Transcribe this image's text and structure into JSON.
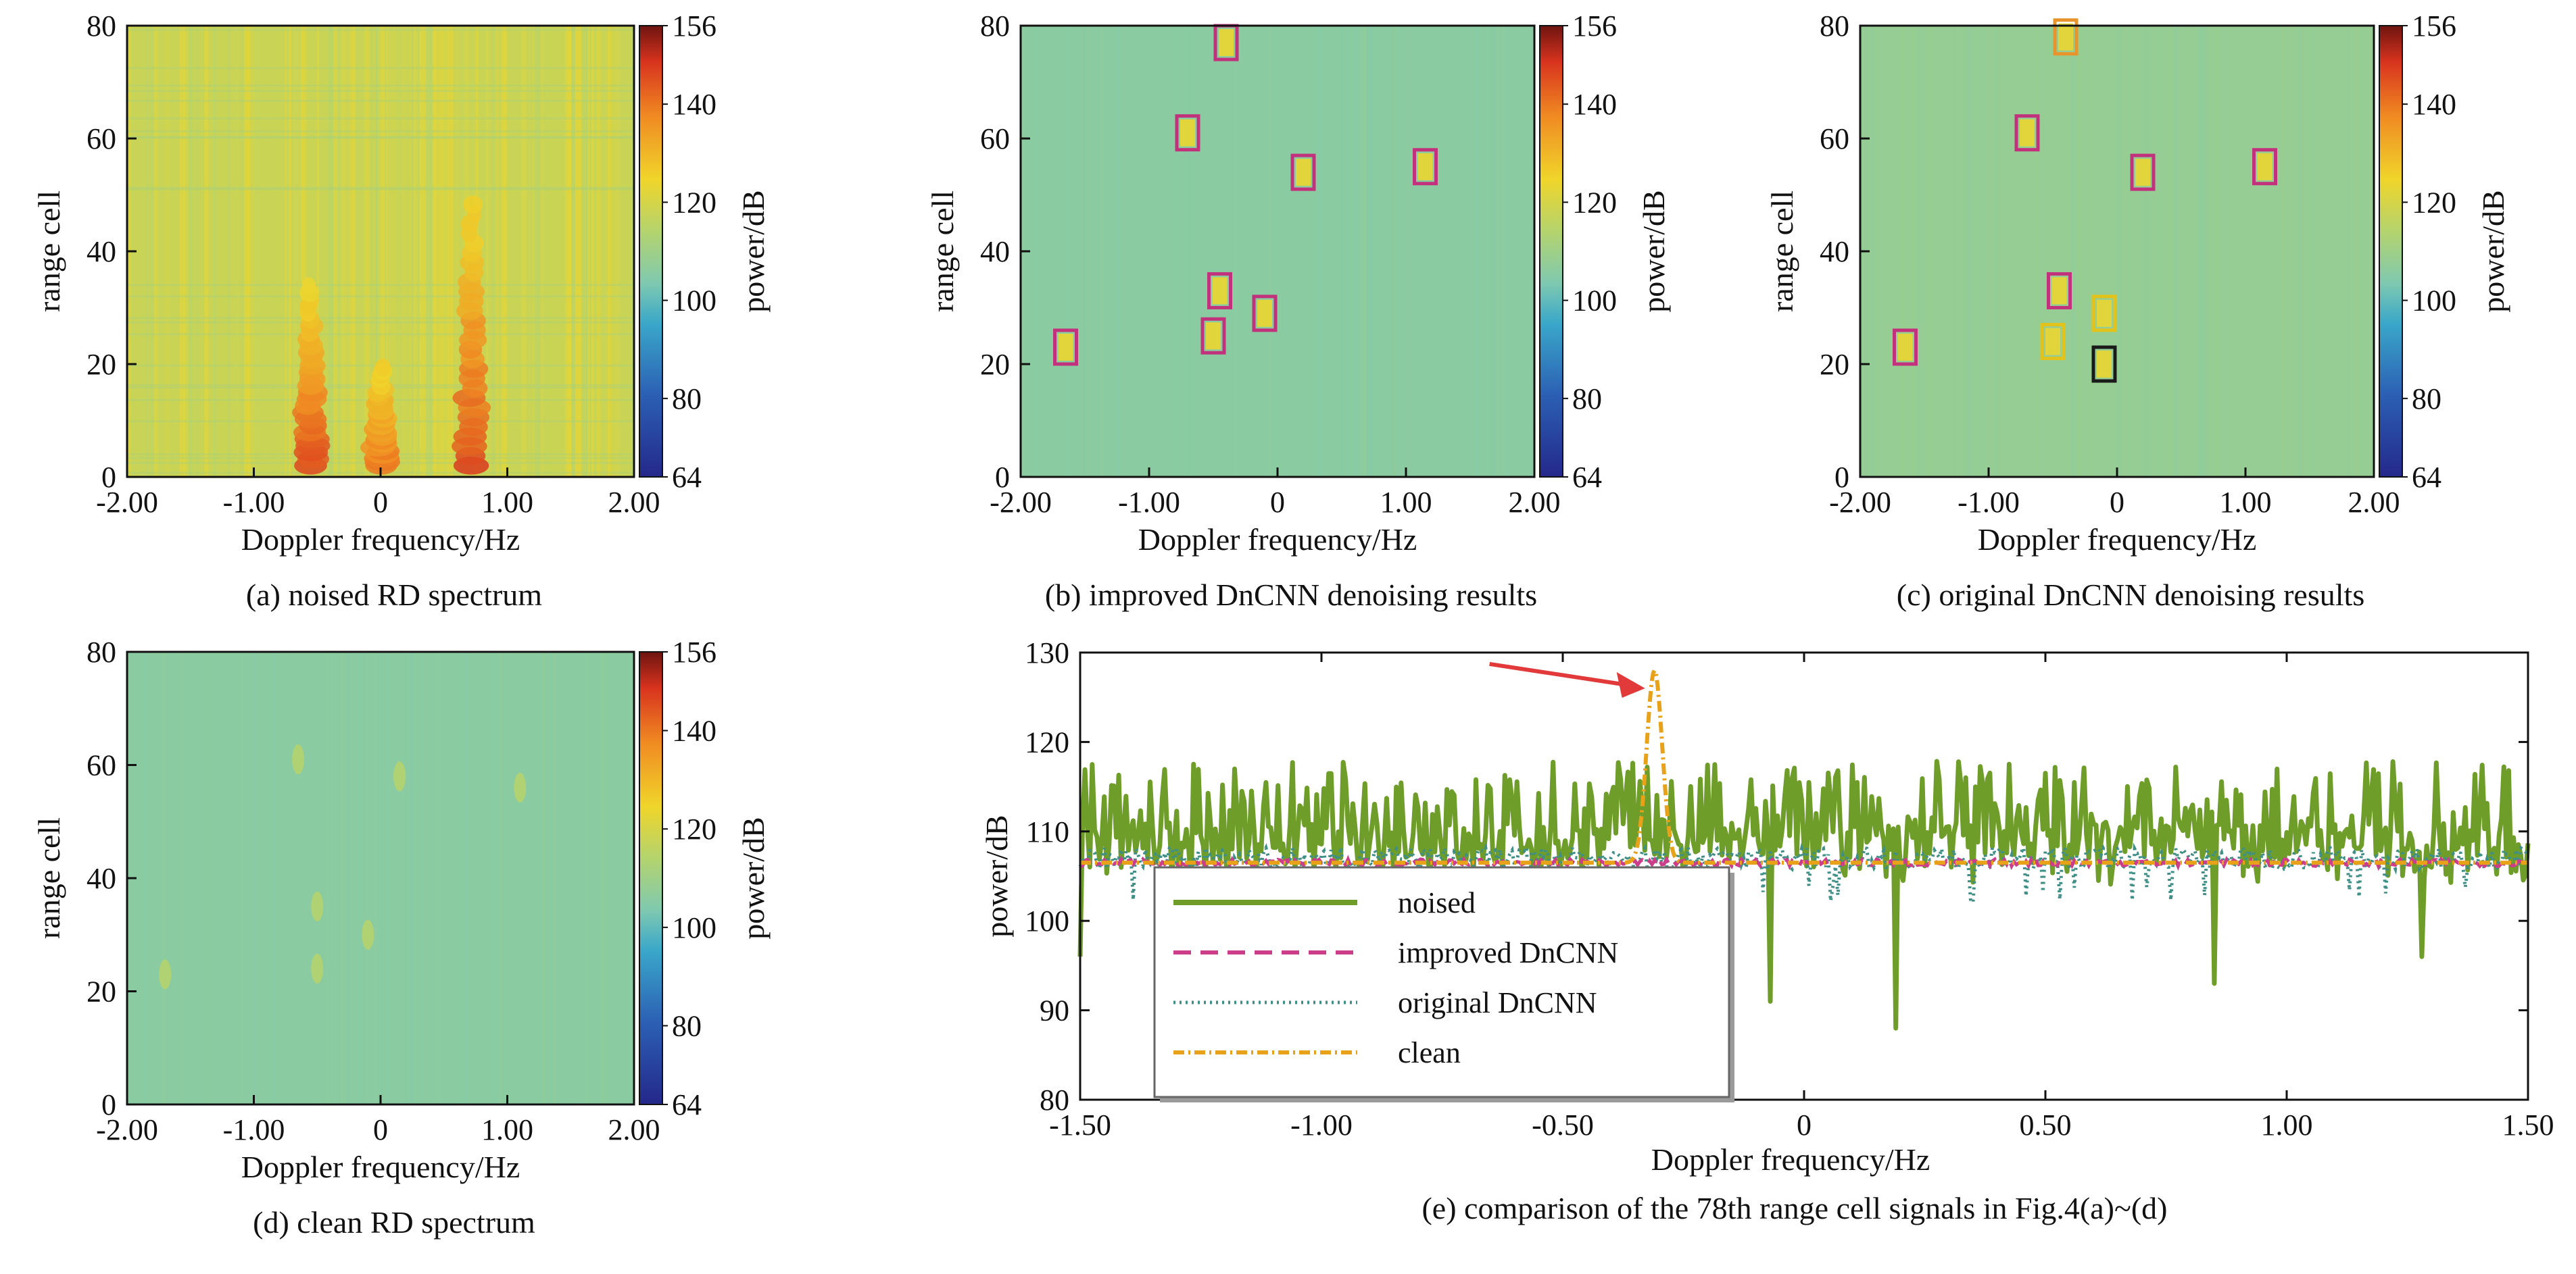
{
  "figure": {
    "background": "#ffffff"
  },
  "chart_data": [
    {
      "id": "a",
      "type": "heatmap",
      "caption": "(a) noised RD spectrum",
      "xlabel": "Doppler frequency/Hz",
      "ylabel": "range cell",
      "colorbar_label": "power/dB",
      "xlim": [
        -2.0,
        2.0
      ],
      "ylim": [
        0,
        80
      ],
      "xticks": [
        "-2.00",
        "-1.00",
        "0",
        "1.00",
        "2.00"
      ],
      "yticks": [
        "0",
        "20",
        "40",
        "60",
        "80"
      ],
      "colorbar_ticks": [
        "64",
        "80",
        "100",
        "120",
        "140",
        "156"
      ],
      "clim": [
        64,
        156
      ],
      "background_level_db": 118,
      "hot_streaks": [
        {
          "doppler_hz": -0.55,
          "range_cells": [
            2,
            35
          ],
          "peak_db": 145
        },
        {
          "doppler_hz": 0.0,
          "range_cells": [
            2,
            20
          ],
          "peak_db": 140
        },
        {
          "doppler_hz": 0.72,
          "range_cells": [
            2,
            50
          ],
          "peak_db": 146
        }
      ]
    },
    {
      "id": "b",
      "type": "heatmap",
      "caption": "(b) improved DnCNN denoising results",
      "xlabel": "Doppler frequency/Hz",
      "ylabel": "range cell",
      "colorbar_label": "power/dB",
      "xlim": [
        -2.0,
        2.0
      ],
      "ylim": [
        0,
        80
      ],
      "xticks": [
        "-2.00",
        "-1.00",
        "0",
        "1.00",
        "2.00"
      ],
      "yticks": [
        "0",
        "20",
        "40",
        "60",
        "80"
      ],
      "colorbar_ticks": [
        "64",
        "80",
        "100",
        "120",
        "140",
        "156"
      ],
      "clim": [
        64,
        156
      ],
      "background_level_db": 106,
      "targets": [
        {
          "doppler_hz": -0.4,
          "range_cell": 77,
          "box": "pink"
        },
        {
          "doppler_hz": -0.7,
          "range_cell": 61,
          "box": "pink"
        },
        {
          "doppler_hz": 0.2,
          "range_cell": 54,
          "box": "pink"
        },
        {
          "doppler_hz": 1.15,
          "range_cell": 55,
          "box": "pink"
        },
        {
          "doppler_hz": -0.45,
          "range_cell": 33,
          "box": "pink"
        },
        {
          "doppler_hz": -0.1,
          "range_cell": 29,
          "box": "pink"
        },
        {
          "doppler_hz": -0.5,
          "range_cell": 25,
          "box": "pink"
        },
        {
          "doppler_hz": -1.65,
          "range_cell": 23,
          "box": "pink"
        }
      ]
    },
    {
      "id": "c",
      "type": "heatmap",
      "caption": "(c) original DnCNN denoising results",
      "xlabel": "Doppler frequency/Hz",
      "ylabel": "range cell",
      "colorbar_label": "power/dB",
      "xlim": [
        -2.0,
        2.0
      ],
      "ylim": [
        0,
        80
      ],
      "xticks": [
        "-2.00",
        "-1.00",
        "0",
        "1.00",
        "2.00"
      ],
      "yticks": [
        "0",
        "20",
        "40",
        "60",
        "80"
      ],
      "colorbar_ticks": [
        "64",
        "80",
        "100",
        "120",
        "140",
        "156"
      ],
      "clim": [
        64,
        156
      ],
      "background_level_db": 108,
      "targets": [
        {
          "doppler_hz": -0.4,
          "range_cell": 78,
          "box": "orange"
        },
        {
          "doppler_hz": -0.7,
          "range_cell": 61,
          "box": "pink"
        },
        {
          "doppler_hz": 0.2,
          "range_cell": 54,
          "box": "pink"
        },
        {
          "doppler_hz": 1.15,
          "range_cell": 55,
          "box": "pink"
        },
        {
          "doppler_hz": -0.45,
          "range_cell": 33,
          "box": "pink"
        },
        {
          "doppler_hz": -0.1,
          "range_cell": 29,
          "box": "yellow"
        },
        {
          "doppler_hz": -0.5,
          "range_cell": 24,
          "box": "yellow"
        },
        {
          "doppler_hz": -0.1,
          "range_cell": 20,
          "box": "black"
        },
        {
          "doppler_hz": -1.65,
          "range_cell": 23,
          "box": "pink"
        }
      ]
    },
    {
      "id": "d",
      "type": "heatmap",
      "caption": "(d) clean RD spectrum",
      "xlabel": "Doppler frequency/Hz",
      "ylabel": "range cell",
      "colorbar_label": "power/dB",
      "xlim": [
        -2.0,
        2.0
      ],
      "ylim": [
        0,
        80
      ],
      "xticks": [
        "-2.00",
        "-1.00",
        "0",
        "1.00",
        "2.00"
      ],
      "yticks": [
        "0",
        "20",
        "40",
        "60",
        "80"
      ],
      "colorbar_ticks": [
        "64",
        "80",
        "100",
        "120",
        "140",
        "156"
      ],
      "clim": [
        64,
        156
      ],
      "background_level_db": 106,
      "faint_targets": [
        {
          "doppler_hz": -0.65,
          "range_cell": 61
        },
        {
          "doppler_hz": 0.15,
          "range_cell": 58
        },
        {
          "doppler_hz": 1.1,
          "range_cell": 56
        },
        {
          "doppler_hz": -0.5,
          "range_cell": 35
        },
        {
          "doppler_hz": -0.1,
          "range_cell": 30
        },
        {
          "doppler_hz": -0.5,
          "range_cell": 24
        },
        {
          "doppler_hz": -1.7,
          "range_cell": 23
        }
      ]
    },
    {
      "id": "e",
      "type": "line",
      "caption": "(e) comparison of the 78th range cell signals in Fig.4(a)~(d)",
      "xlabel": "Doppler frequency/Hz",
      "ylabel": "power/dB",
      "xlim": [
        -1.5,
        1.5
      ],
      "ylim": [
        80,
        130
      ],
      "xticks": [
        "-1.50",
        "-1.00",
        "-0.50",
        "0",
        "0.50",
        "1.00",
        "1.50"
      ],
      "yticks": [
        "80",
        "90",
        "100",
        "110",
        "120",
        "130"
      ],
      "legend_position": "lower-left",
      "annotation": {
        "type": "arrow",
        "points_to_hz": -0.31,
        "points_to_db": 126
      },
      "series": [
        {
          "name": "noised",
          "color": "#6f9d2a",
          "style": "solid",
          "baseline_db": 111,
          "swing_db": 7,
          "dips": [
            {
              "hz": -1.5,
              "db": 96
            },
            {
              "hz": -0.07,
              "db": 91
            },
            {
              "hz": 0.19,
              "db": 88
            },
            {
              "hz": 0.85,
              "db": 93
            },
            {
              "hz": 1.28,
              "db": 96
            }
          ]
        },
        {
          "name": "improved DnCNN",
          "color": "#cc3d8a",
          "style": "dashed",
          "level_db": 106.5
        },
        {
          "name": "original DnCNN",
          "color": "#3f8f86",
          "style": "dotted",
          "level_db": 107
        },
        {
          "name": "clean",
          "color": "#e8a21a",
          "style": "dash-dot",
          "level_db": 106.5,
          "peak": {
            "hz": -0.31,
            "db": 128,
            "width_hz": 0.05
          }
        }
      ]
    }
  ]
}
